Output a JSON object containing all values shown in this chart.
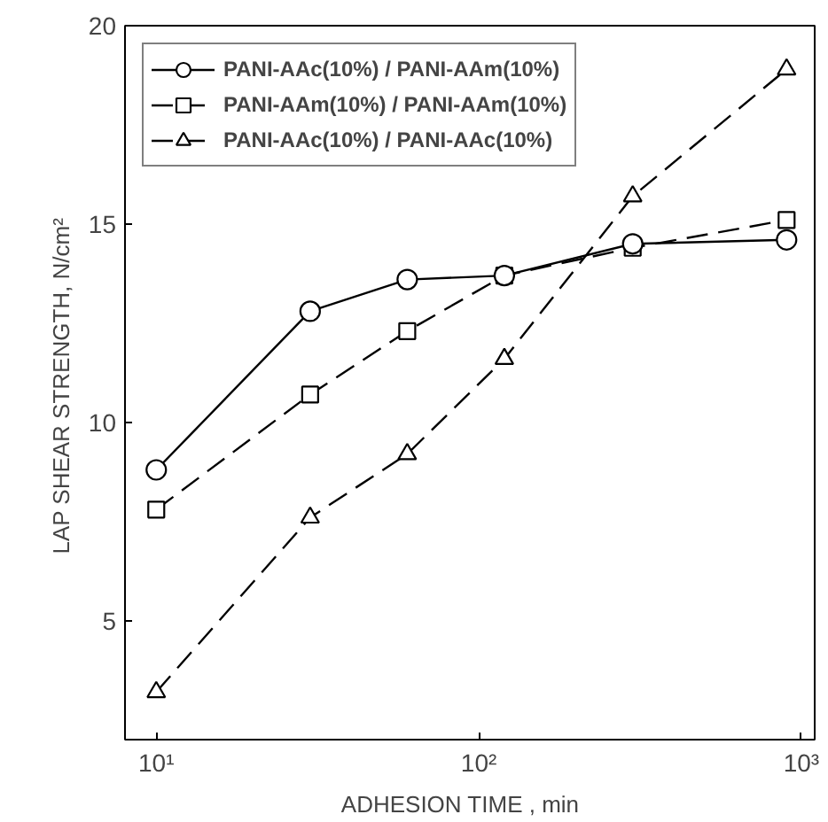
{
  "chart_data": {
    "type": "line",
    "xlabel": "ADHESION  TIME  ,  min",
    "ylabel": "LAP SHEAR STRENGTH,  N/cm²",
    "log": "x",
    "grid": false,
    "legend": "top left",
    "x": [
      10,
      30,
      60,
      120,
      300,
      900
    ],
    "xlim": [
      8,
      1100
    ],
    "xticks": [
      {
        "value": 10,
        "label": "10¹"
      },
      {
        "value": 100,
        "label": "10²"
      },
      {
        "value": 1000,
        "label": "10³"
      }
    ],
    "ylim": [
      2,
      20
    ],
    "yticks": [
      5,
      10,
      15,
      20
    ],
    "series": [
      {
        "name": "PANI-AAc(10%) / PANI-AAm(10%)",
        "color": "#000000",
        "marker": "circle",
        "line_style": "solid",
        "values": [
          8.8,
          12.8,
          13.6,
          13.7,
          14.5,
          14.6
        ]
      },
      {
        "name": "PANI-AAm(10%) / PANI-AAm(10%)",
        "color": "#000000",
        "marker": "square",
        "line_style": "dashed",
        "values": [
          7.8,
          10.7,
          12.3,
          13.7,
          14.4,
          15.1
        ]
      },
      {
        "name": "PANI-AAc(10%) / PANI-AAc(10%)",
        "color": "#000000",
        "marker": "triangle",
        "line_style": "dashed",
        "values": [
          3.2,
          7.6,
          9.2,
          11.6,
          15.7,
          18.9
        ]
      }
    ]
  }
}
